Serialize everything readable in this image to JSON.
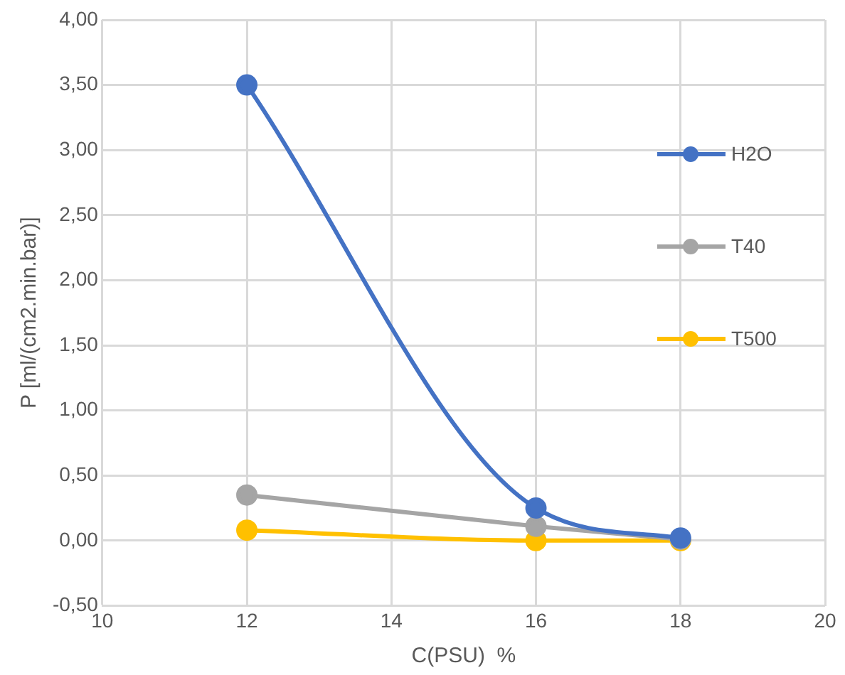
{
  "chart_data": {
    "type": "line",
    "xlabel": "C(PSU)  %",
    "ylabel": "P [ml/(cm2.min.bar)]",
    "x": [
      12,
      16,
      18
    ],
    "series": [
      {
        "name": "H2O",
        "color": "#4472c4",
        "values": [
          3.5,
          0.25,
          0.02
        ]
      },
      {
        "name": "T40",
        "color": "#a5a5a5",
        "values": [
          0.35,
          0.11,
          0.01
        ]
      },
      {
        "name": "T500",
        "color": "#ffc000",
        "values": [
          0.08,
          0,
          0
        ]
      }
    ],
    "xlim": [
      10,
      20
    ],
    "xticks": [
      10,
      12,
      14,
      16,
      18,
      20
    ],
    "ylim": [
      -0.5,
      4
    ],
    "yticks": [
      {
        "value": -0.5,
        "label": "-0,50"
      },
      {
        "value": 0,
        "label": "0,00"
      },
      {
        "value": 0.5,
        "label": "0,50"
      },
      {
        "value": 1,
        "label": "1,00"
      },
      {
        "value": 1.5,
        "label": "1,50"
      },
      {
        "value": 2,
        "label": "2,00"
      },
      {
        "value": 2.5,
        "label": "2,50"
      },
      {
        "value": 3,
        "label": "3,00"
      },
      {
        "value": 3.5,
        "label": "3,50"
      },
      {
        "value": 4,
        "label": "4,00"
      }
    ],
    "grid": true,
    "legend": "right",
    "marker": "circle",
    "line_style": "solid"
  }
}
